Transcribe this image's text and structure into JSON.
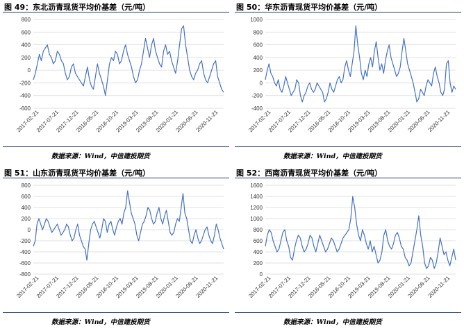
{
  "chart_data": [
    {
      "type": "line",
      "title": "图 49：东北沥青现货平均价基差（元/吨）",
      "source": "数据来源：Wind，中信建投期货",
      "ylim": [
        -600,
        800
      ],
      "yticks": [
        -600,
        -400,
        -200,
        0,
        200,
        400,
        600,
        800
      ],
      "xticks": [
        "2017-02-21",
        "2017-07-21",
        "2017-12-21",
        "2018-05-21",
        "2018-10-21",
        "2019-03-21",
        "2019-08-21",
        "2020-01-21",
        "2020-06-21",
        "2020-11-21"
      ],
      "grid": true,
      "color": "#4472c4",
      "series": [
        {
          "values": [
            -150,
            -50,
            100,
            250,
            150,
            300,
            350,
            400,
            250,
            200,
            100,
            150,
            300,
            250,
            150,
            100,
            -50,
            -150,
            -100,
            50,
            100,
            -50,
            -100,
            -150,
            -200,
            -250,
            -100,
            50,
            -150,
            -250,
            -300,
            -100,
            100,
            -50,
            -150,
            -250,
            -400,
            -150,
            100,
            200,
            150,
            300,
            250,
            100,
            150,
            300,
            400,
            250,
            150,
            50,
            -100,
            -200,
            -150,
            0,
            100,
            300,
            500,
            350,
            200,
            400,
            500,
            300,
            200,
            100,
            50,
            300,
            400,
            250,
            300,
            150,
            50,
            -50,
            150,
            400,
            650,
            700,
            400,
            200,
            0,
            -100,
            -150,
            -50,
            0,
            100,
            150,
            -50,
            -150,
            -200,
            -100,
            0,
            100,
            150,
            -100,
            -200,
            -300,
            -350
          ]
        }
      ]
    },
    {
      "type": "line",
      "title": "图 50：华东沥青现货平均价基差（元/吨）",
      "source": "数据来源：Wind，中信建投期货",
      "ylim": [
        -400,
        1000
      ],
      "yticks": [
        -400,
        -200,
        0,
        200,
        400,
        600,
        800,
        1000
      ],
      "xticks": [
        "2017-02-21",
        "2017-07-21",
        "2017-12-21",
        "2018-05-21",
        "2018-10-21",
        "2019-03-21",
        "2019-08-21",
        "2020-01-21",
        "2020-06-21",
        "2020-11-21"
      ],
      "grid": true,
      "color": "#4472c4",
      "series": [
        {
          "values": [
            50,
            200,
            300,
            150,
            100,
            0,
            -50,
            50,
            -100,
            -150,
            -50,
            100,
            0,
            -100,
            -200,
            -150,
            -100,
            50,
            0,
            -200,
            -300,
            -200,
            -150,
            -50,
            0,
            -100,
            -150,
            -100,
            0,
            -50,
            -100,
            -150,
            -300,
            -250,
            -150,
            0,
            -100,
            -150,
            -50,
            50,
            100,
            0,
            50,
            250,
            350,
            200,
            100,
            300,
            500,
            900,
            600,
            400,
            150,
            50,
            200,
            100,
            300,
            400,
            250,
            500,
            650,
            400,
            200,
            300,
            150,
            350,
            500,
            600,
            400,
            300,
            200,
            100,
            150,
            250,
            500,
            700,
            500,
            300,
            200,
            100,
            0,
            -150,
            -300,
            -250,
            -100,
            -150,
            -200,
            -50,
            50,
            0,
            -50,
            150,
            250,
            100,
            0,
            -150,
            -200,
            -100,
            300,
            350,
            0,
            -150,
            -50,
            -100
          ]
        }
      ]
    },
    {
      "type": "line",
      "title": "图 51：山东沥青现货平均价基差（元/吨）",
      "source": "数据来源：Wind，中信建投期货",
      "ylim": [
        -800,
        800
      ],
      "yticks": [
        -800,
        -600,
        -400,
        -200,
        0,
        200,
        400,
        600,
        800
      ],
      "xticks": [
        "2017-02-21",
        "2017-07-21",
        "2017-12-21",
        "2018-05-21",
        "2018-10-21",
        "2019-03-21",
        "2019-08-21",
        "2020-01-21",
        "2020-06-21",
        "2020-11-21"
      ],
      "grid": true,
      "color": "#4472c4",
      "series": [
        {
          "values": [
            -300,
            -200,
            100,
            200,
            100,
            0,
            100,
            200,
            150,
            50,
            -50,
            0,
            50,
            100,
            0,
            -100,
            -50,
            0,
            100,
            50,
            -100,
            -200,
            -150,
            0,
            100,
            -100,
            -200,
            -300,
            -350,
            -550,
            -250,
            0,
            100,
            150,
            50,
            -50,
            -150,
            0,
            200,
            150,
            -50,
            100,
            150,
            0,
            -100,
            50,
            150,
            200,
            100,
            300,
            400,
            700,
            500,
            300,
            200,
            100,
            -100,
            -200,
            -50,
            100,
            150,
            250,
            400,
            350,
            200,
            100,
            150,
            300,
            400,
            200,
            100,
            250,
            350,
            150,
            -50,
            -100,
            -50,
            100,
            200,
            150,
            400,
            650,
            300,
            200,
            0,
            -200,
            -250,
            -100,
            0,
            -150,
            -250,
            -200,
            -100,
            0,
            50,
            -100,
            -200,
            -250,
            -100,
            100,
            0,
            -150,
            -250,
            -350
          ]
        }
      ]
    },
    {
      "type": "line",
      "title": "图 52：西南沥青现货平均价基差（元/吨）",
      "source": "数据来源：Wind，中信建投期货",
      "ylim": [
        0,
        1600
      ],
      "yticks": [
        0,
        200,
        400,
        600,
        800,
        1000,
        1200,
        1400,
        1600
      ],
      "xticks": [
        "2017-02-21",
        "2017-07-21",
        "2017-12-21",
        "2018-05-21",
        "2018-10-21",
        "2019-03-21",
        "2019-08-21",
        "2020-01-21",
        "2020-06-21",
        "2020-11-21"
      ],
      "grid": true,
      "color": "#4472c4",
      "series": [
        {
          "values": [
            500,
            700,
            800,
            750,
            600,
            500,
            400,
            450,
            600,
            750,
            800,
            600,
            500,
            300,
            250,
            450,
            600,
            700,
            650,
            500,
            400,
            450,
            550,
            700,
            650,
            500,
            400,
            550,
            700,
            600,
            500,
            400,
            450,
            550,
            650,
            600,
            500,
            400,
            450,
            550,
            650,
            700,
            750,
            800,
            1000,
            1400,
            1200,
            900,
            700,
            600,
            800,
            700,
            550,
            450,
            600,
            400,
            500,
            350,
            200,
            250,
            400,
            700,
            800,
            600,
            500,
            450,
            550,
            700,
            750,
            650,
            500,
            450,
            300,
            250,
            150,
            200,
            400,
            600,
            800,
            1050,
            700,
            500,
            200,
            100,
            150,
            300,
            250,
            100,
            200,
            400,
            650,
            500,
            350,
            400,
            250,
            150,
            300,
            450,
            250
          ]
        }
      ]
    }
  ]
}
